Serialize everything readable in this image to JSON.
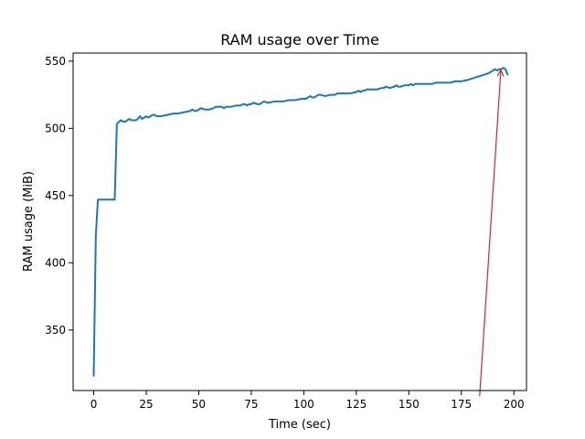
{
  "chart_data": {
    "type": "line",
    "title": "RAM usage over Time",
    "xlabel": "Time (sec)",
    "ylabel": "RAM usage (MiB)",
    "xlim": [
      -9.8,
      206
    ],
    "ylim": [
      305,
      556
    ],
    "xticks": [
      0,
      25,
      50,
      75,
      100,
      125,
      150,
      175,
      200
    ],
    "yticks": [
      350,
      400,
      450,
      500,
      550
    ],
    "grid": false,
    "legend": "none",
    "series": [
      {
        "color": "#1f77b4",
        "x": [
          0,
          1,
          2,
          4,
          6,
          8,
          10,
          11,
          12,
          13,
          14,
          15,
          16,
          17,
          18,
          19,
          20,
          21,
          22,
          23,
          24,
          25,
          26,
          27,
          28,
          29,
          30,
          32,
          35,
          38,
          40,
          43,
          46,
          47,
          48,
          49,
          50,
          51,
          53,
          55,
          57,
          58,
          59,
          61,
          62,
          63,
          65,
          68,
          70,
          71,
          72,
          73,
          74,
          75,
          76,
          78,
          79,
          80,
          81,
          83,
          86,
          90,
          93,
          96,
          99,
          101,
          102,
          103,
          104,
          105,
          106,
          107,
          108,
          110,
          113,
          115,
          116,
          117,
          118,
          120,
          122,
          125,
          126,
          127,
          128,
          129,
          130,
          131,
          133,
          135,
          137,
          138,
          139,
          141,
          143,
          144,
          145,
          146,
          148,
          150,
          151,
          152,
          153,
          154,
          155,
          157,
          159,
          161,
          163,
          165,
          168,
          170,
          172,
          175,
          178,
          180,
          182,
          184,
          186,
          188,
          190,
          191,
          192,
          193,
          194,
          195,
          196,
          197
        ],
        "y": [
          316,
          420,
          447,
          447,
          447,
          447,
          447,
          503,
          505,
          506,
          505,
          505,
          506,
          507,
          506,
          506,
          506,
          507,
          509,
          507,
          508,
          509,
          508,
          509,
          510,
          510,
          509,
          509,
          510,
          511,
          511,
          512,
          513,
          514,
          513,
          513,
          514,
          515,
          514,
          514,
          515,
          516,
          516,
          516,
          515,
          516,
          516,
          517,
          517,
          518,
          518,
          517,
          518,
          518,
          519,
          518,
          518,
          519,
          520,
          519,
          520,
          520,
          521,
          521,
          522,
          522,
          523,
          524,
          523,
          523,
          524,
          525,
          525,
          524,
          525,
          525,
          526,
          526,
          526,
          526,
          526,
          527,
          528,
          527,
          528,
          528,
          529,
          529,
          529,
          529,
          530,
          530,
          531,
          530,
          531,
          532,
          531,
          531,
          532,
          532,
          533,
          532,
          533,
          533,
          533,
          533,
          533,
          533,
          534,
          534,
          534,
          534,
          535,
          535,
          536,
          537,
          538,
          539,
          540,
          541,
          543,
          544,
          543,
          544,
          544,
          545,
          544,
          540
        ]
      }
    ],
    "annotations": [
      {
        "type": "arrow",
        "color": "#d62728",
        "tail": [
          183.7,
          300.8
        ],
        "head": [
          193.8,
          543.6
        ]
      }
    ]
  }
}
